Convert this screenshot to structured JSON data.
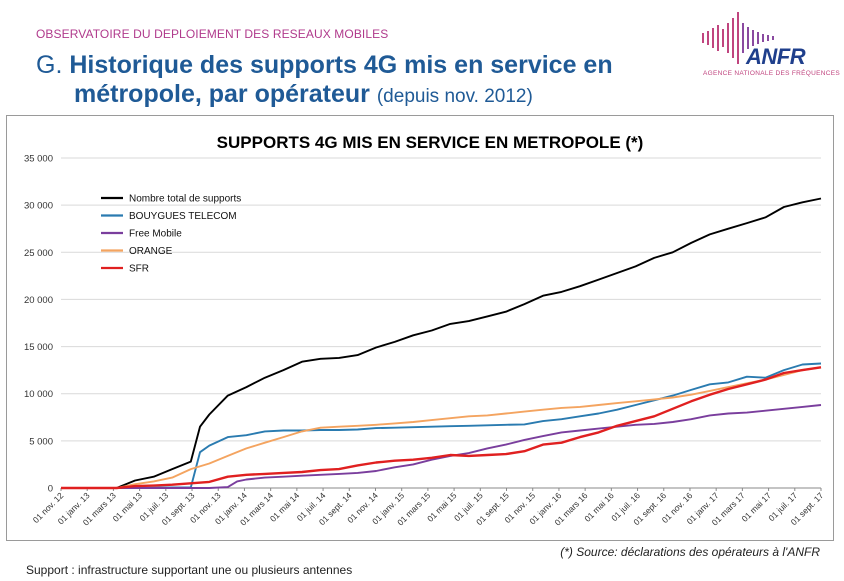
{
  "header": {
    "observatory": "OBSERVATOIRE DU DEPLOIEMENT DES RESEAUX MOBILES",
    "title_prefix": "G.",
    "title_line1": "Historique des supports 4G mis en service en",
    "title_line2": "métropole, par opérateur",
    "title_suffix": "(depuis nov. 2012)"
  },
  "logo": {
    "name": "ANFR",
    "subtitle": "AGENCE NATIONALE DES FRÉQUENCES",
    "icon": "anfr-waveform-logo"
  },
  "chart_data": {
    "type": "line",
    "title": "SUPPORTS 4G MIS EN SERVICE EN METROPOLE (*)",
    "xlabel": "",
    "ylabel": "",
    "ylim": [
      0,
      35000
    ],
    "yticks": [
      0,
      5000,
      10000,
      15000,
      20000,
      25000,
      30000,
      35000
    ],
    "ytick_labels": [
      "0",
      "5 000",
      "10 000",
      "15 000",
      "20 000",
      "25 000",
      "30 000",
      "35 000"
    ],
    "grid": true,
    "legend_position": "top-left",
    "categories": [
      "01 nov. 12",
      "01 janv. 13",
      "01 mars 13",
      "01 mai 13",
      "01 juil. 13",
      "01 sept. 13",
      "01 nov. 13",
      "01 janv. 14",
      "01 mars 14",
      "01 mai 14",
      "01 juil. 14",
      "01 sept. 14",
      "01 nov. 14",
      "01 janv. 15",
      "01 mars 15",
      "01 mai 15",
      "01 juil. 15",
      "01 sept. 15",
      "01 nov. 15",
      "01 janv. 16",
      "01 mars 16",
      "01 mai 16",
      "01 juil. 16",
      "01 sept. 16",
      "01 nov. 16",
      "01 janv. 17",
      "01 mars 17",
      "01 mai 17",
      "01 juil. 17",
      "01 sept. 17"
    ],
    "series": [
      {
        "name": "Nombre total de supports",
        "color": "#000000",
        "points": [
          [
            0,
            0
          ],
          [
            2,
            0
          ],
          [
            3,
            0
          ],
          [
            4,
            800
          ],
          [
            5,
            1200
          ],
          [
            6,
            2000
          ],
          [
            7,
            2800
          ],
          [
            7.5,
            6500
          ],
          [
            8,
            7800
          ],
          [
            9,
            9800
          ],
          [
            10,
            10700
          ],
          [
            11,
            11700
          ],
          [
            12,
            12500
          ],
          [
            13,
            13400
          ],
          [
            14,
            13700
          ],
          [
            15,
            13800
          ],
          [
            16,
            14100
          ],
          [
            17,
            14900
          ],
          [
            18,
            15500
          ],
          [
            19,
            16200
          ],
          [
            20,
            16700
          ],
          [
            21,
            17400
          ],
          [
            22,
            17700
          ],
          [
            23,
            18200
          ],
          [
            24,
            18700
          ],
          [
            25,
            19500
          ],
          [
            26,
            20400
          ],
          [
            27,
            20800
          ],
          [
            28,
            21400
          ],
          [
            29,
            22100
          ],
          [
            30,
            22800
          ],
          [
            31,
            23500
          ],
          [
            32,
            24400
          ],
          [
            33,
            25000
          ],
          [
            34,
            26000
          ],
          [
            35,
            26900
          ],
          [
            36,
            27500
          ],
          [
            37,
            28100
          ],
          [
            38,
            28700
          ],
          [
            39,
            29800
          ],
          [
            40,
            30300
          ],
          [
            41,
            30700
          ]
        ]
      },
      {
        "name": "BOUYGUES TELECOM",
        "color": "#2a7bb0",
        "points": [
          [
            0,
            0
          ],
          [
            3,
            0
          ],
          [
            6,
            50
          ],
          [
            7,
            50
          ],
          [
            7.5,
            3800
          ],
          [
            8,
            4500
          ],
          [
            9,
            5400
          ],
          [
            10,
            5600
          ],
          [
            11,
            6000
          ],
          [
            12,
            6100
          ],
          [
            13,
            6100
          ],
          [
            14,
            6150
          ],
          [
            15,
            6150
          ],
          [
            16,
            6200
          ],
          [
            17,
            6350
          ],
          [
            18,
            6400
          ],
          [
            19,
            6450
          ],
          [
            20,
            6500
          ],
          [
            21,
            6550
          ],
          [
            22,
            6600
          ],
          [
            23,
            6650
          ],
          [
            24,
            6700
          ],
          [
            25,
            6750
          ],
          [
            26,
            7100
          ],
          [
            27,
            7300
          ],
          [
            28,
            7600
          ],
          [
            29,
            7900
          ],
          [
            30,
            8300
          ],
          [
            31,
            8800
          ],
          [
            32,
            9300
          ],
          [
            33,
            9800
          ],
          [
            34,
            10400
          ],
          [
            35,
            11000
          ],
          [
            36,
            11200
          ],
          [
            37,
            11800
          ],
          [
            38,
            11700
          ],
          [
            39,
            12500
          ],
          [
            40,
            13100
          ],
          [
            41,
            13200
          ]
        ]
      },
      {
        "name": "Free Mobile",
        "color": "#7a3e9d",
        "points": [
          [
            0,
            0
          ],
          [
            8,
            0
          ],
          [
            9,
            100
          ],
          [
            9.5,
            700
          ],
          [
            10,
            900
          ],
          [
            11,
            1100
          ],
          [
            12,
            1200
          ],
          [
            13,
            1300
          ],
          [
            14,
            1400
          ],
          [
            15,
            1500
          ],
          [
            16,
            1600
          ],
          [
            17,
            1800
          ],
          [
            18,
            2200
          ],
          [
            19,
            2500
          ],
          [
            20,
            3000
          ],
          [
            21,
            3400
          ],
          [
            22,
            3700
          ],
          [
            23,
            4200
          ],
          [
            24,
            4600
          ],
          [
            25,
            5100
          ],
          [
            26,
            5500
          ],
          [
            27,
            5900
          ],
          [
            28,
            6100
          ],
          [
            29,
            6300
          ],
          [
            30,
            6500
          ],
          [
            31,
            6700
          ],
          [
            32,
            6800
          ],
          [
            33,
            7000
          ],
          [
            34,
            7300
          ],
          [
            35,
            7700
          ],
          [
            36,
            7900
          ],
          [
            37,
            8000
          ],
          [
            38,
            8200
          ],
          [
            39,
            8400
          ],
          [
            40,
            8600
          ],
          [
            41,
            8800
          ]
        ]
      },
      {
        "name": "ORANGE",
        "color": "#f4a460",
        "points": [
          [
            0,
            0
          ],
          [
            3,
            0
          ],
          [
            4,
            400
          ],
          [
            5,
            700
          ],
          [
            6,
            1100
          ],
          [
            7,
            2000
          ],
          [
            8,
            2600
          ],
          [
            9,
            3400
          ],
          [
            10,
            4200
          ],
          [
            11,
            4800
          ],
          [
            12,
            5400
          ],
          [
            13,
            6000
          ],
          [
            14,
            6400
          ],
          [
            15,
            6500
          ],
          [
            16,
            6600
          ],
          [
            17,
            6700
          ],
          [
            18,
            6850
          ],
          [
            19,
            7000
          ],
          [
            20,
            7200
          ],
          [
            21,
            7400
          ],
          [
            22,
            7600
          ],
          [
            23,
            7700
          ],
          [
            24,
            7900
          ],
          [
            25,
            8100
          ],
          [
            26,
            8300
          ],
          [
            27,
            8500
          ],
          [
            28,
            8600
          ],
          [
            29,
            8800
          ],
          [
            30,
            9000
          ],
          [
            31,
            9200
          ],
          [
            32,
            9400
          ],
          [
            33,
            9600
          ],
          [
            34,
            9900
          ],
          [
            35,
            10300
          ],
          [
            36,
            10700
          ],
          [
            37,
            11100
          ],
          [
            38,
            11500
          ],
          [
            39,
            12000
          ],
          [
            40,
            12500
          ],
          [
            41,
            12800
          ]
        ]
      },
      {
        "name": "SFR",
        "color": "#e02020",
        "points": [
          [
            0,
            0
          ],
          [
            3,
            0
          ],
          [
            4,
            200
          ],
          [
            5,
            250
          ],
          [
            6,
            350
          ],
          [
            7,
            500
          ],
          [
            8,
            650
          ],
          [
            9,
            1200
          ],
          [
            10,
            1400
          ],
          [
            11,
            1500
          ],
          [
            12,
            1600
          ],
          [
            13,
            1700
          ],
          [
            14,
            1900
          ],
          [
            15,
            2000
          ],
          [
            16,
            2400
          ],
          [
            17,
            2700
          ],
          [
            18,
            2900
          ],
          [
            19,
            3000
          ],
          [
            20,
            3200
          ],
          [
            21,
            3500
          ],
          [
            22,
            3400
          ],
          [
            23,
            3500
          ],
          [
            24,
            3600
          ],
          [
            25,
            3900
          ],
          [
            26,
            4600
          ],
          [
            27,
            4800
          ],
          [
            28,
            5400
          ],
          [
            29,
            5900
          ],
          [
            30,
            6600
          ],
          [
            31,
            7100
          ],
          [
            32,
            7600
          ],
          [
            33,
            8400
          ],
          [
            34,
            9200
          ],
          [
            35,
            9900
          ],
          [
            36,
            10500
          ],
          [
            37,
            11000
          ],
          [
            38,
            11500
          ],
          [
            39,
            12200
          ],
          [
            40,
            12500
          ],
          [
            41,
            12800
          ]
        ]
      }
    ]
  },
  "footer": {
    "source": "(*) Source: déclarations des opérateurs à l'ANFR",
    "note": "Support : infrastructure supportant une ou plusieurs antennes"
  }
}
